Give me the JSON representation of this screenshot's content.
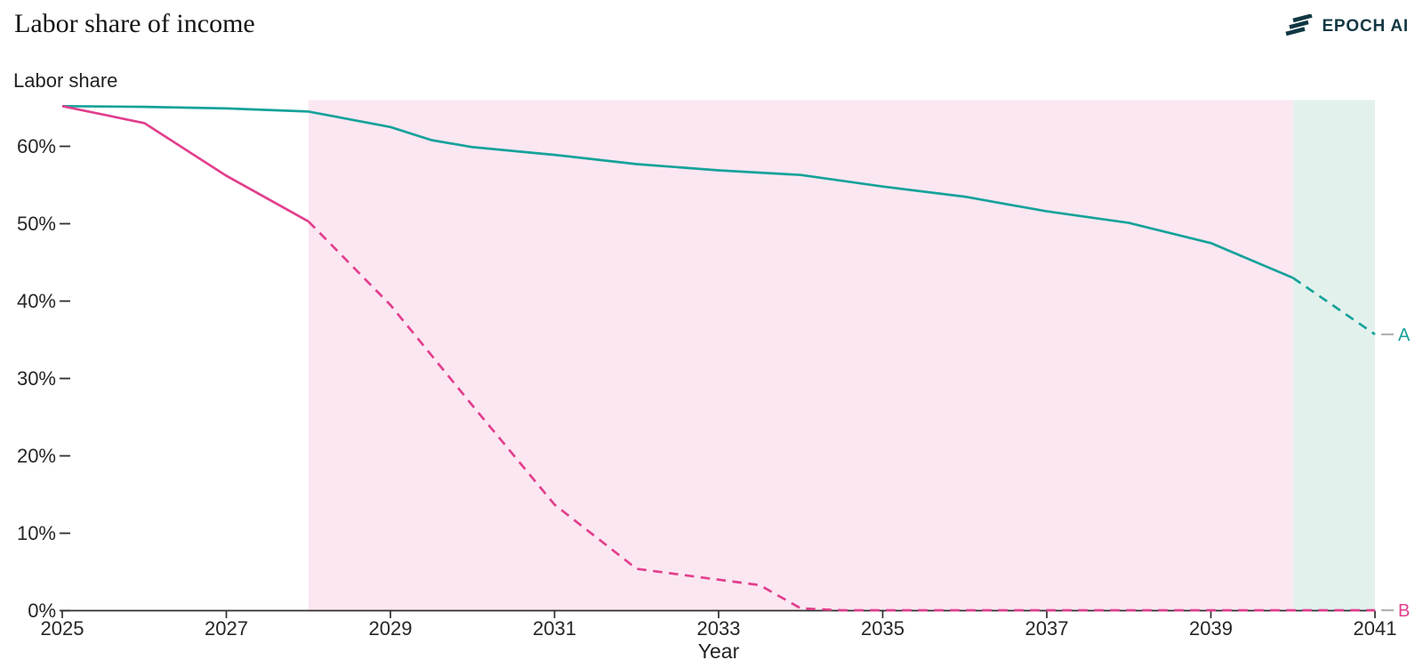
{
  "header": {
    "title": "Labor share of income",
    "logo_text": "EPOCH AI"
  },
  "colors": {
    "series_a": "#16A29A",
    "series_b": "#E23F8D",
    "region_pink": "#FBE7F2",
    "region_mint": "#E3F1ED",
    "axis": "#2E2E2E",
    "tick_text": "#262626",
    "leader_dash": "#B3B3B3",
    "logo": "#123843"
  },
  "chart_data": {
    "type": "line",
    "title": "Labor share of income",
    "ylabel": "Labor share",
    "xlabel": "Year",
    "xlim": [
      2025,
      2041
    ],
    "ylim": [
      0,
      66
    ],
    "grid": false,
    "x_ticks": [
      2025,
      2027,
      2029,
      2031,
      2033,
      2035,
      2037,
      2039,
      2041
    ],
    "y_ticks_pct": [
      0,
      10,
      20,
      30,
      40,
      50,
      60
    ],
    "y_tick_suffix": "%",
    "legend_position": "right-end-labels",
    "regions": [
      {
        "name": "pink-band",
        "x0": 2028,
        "x1": 2040,
        "color": "#FBE7F2"
      },
      {
        "name": "mint-band",
        "x0": 2040,
        "x1": 2041,
        "color": "#E3F1ED"
      }
    ],
    "series": [
      {
        "name": "A",
        "color": "#16A29A",
        "dash_from_x": 2040,
        "points": [
          [
            2025,
            65.2
          ],
          [
            2026,
            65.1
          ],
          [
            2027,
            64.9
          ],
          [
            2028,
            64.5
          ],
          [
            2029,
            62.5
          ],
          [
            2029.5,
            60.8
          ],
          [
            2030,
            59.9
          ],
          [
            2031,
            58.9
          ],
          [
            2032,
            57.7
          ],
          [
            2033,
            56.9
          ],
          [
            2034,
            56.3
          ],
          [
            2035,
            54.8
          ],
          [
            2036,
            53.5
          ],
          [
            2037,
            51.6
          ],
          [
            2038,
            50.1
          ],
          [
            2039,
            47.5
          ],
          [
            2040,
            43.0
          ],
          [
            2041,
            35.7
          ]
        ]
      },
      {
        "name": "B",
        "color": "#E23F8D",
        "dash_from_x": 2028,
        "points": [
          [
            2025,
            65.2
          ],
          [
            2026,
            63.0
          ],
          [
            2027,
            56.2
          ],
          [
            2028,
            50.3
          ],
          [
            2029,
            39.5
          ],
          [
            2030,
            26.5
          ],
          [
            2031,
            13.7
          ],
          [
            2032,
            5.4
          ],
          [
            2033,
            4.0
          ],
          [
            2033.5,
            3.3
          ],
          [
            2034,
            0.3
          ],
          [
            2034.5,
            0.05
          ],
          [
            2041,
            0.05
          ]
        ]
      }
    ]
  }
}
